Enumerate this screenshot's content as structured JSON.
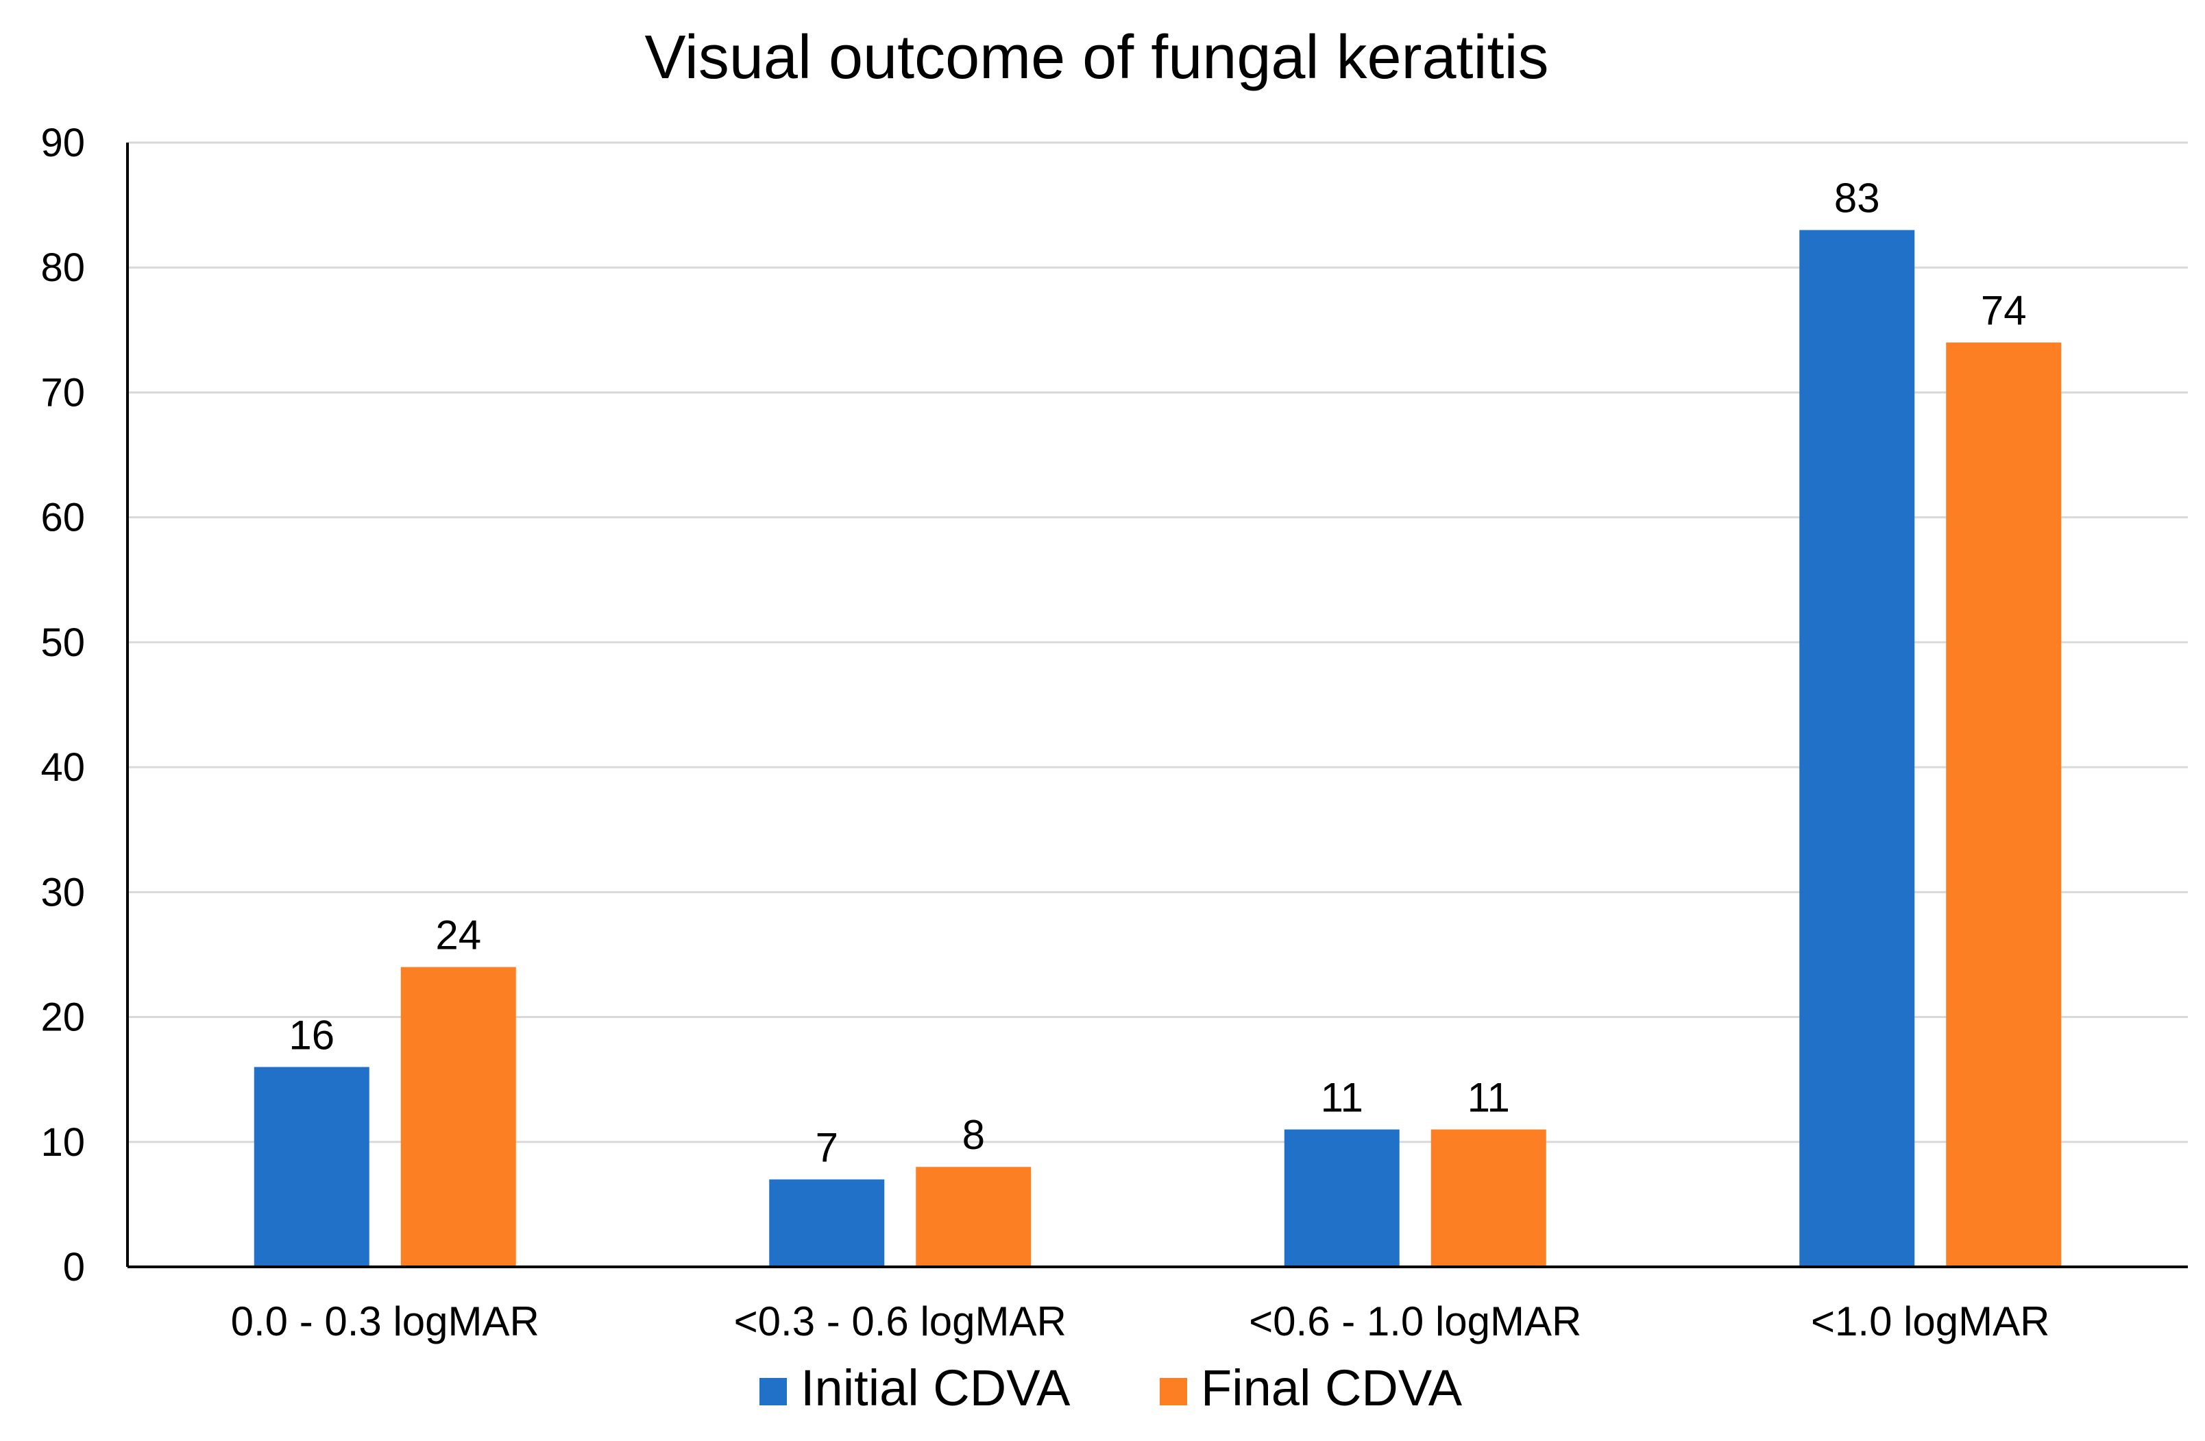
{
  "chart_data": {
    "type": "bar",
    "title": "Visual outcome of fungal keratitis",
    "xlabel": "",
    "ylabel": "",
    "ylim": [
      0,
      90
    ],
    "yticks": [
      0,
      10,
      20,
      30,
      40,
      50,
      60,
      70,
      80,
      90
    ],
    "grid": true,
    "legend_position": "bottom-center",
    "categories": [
      "0.0 - 0.3 logMAR",
      "<0.3 - 0.6 logMAR",
      "<0.6 - 1.0 logMAR",
      "<1.0 logMAR"
    ],
    "series": [
      {
        "name": "Initial CDVA",
        "color": "#2171c9",
        "values": [
          16,
          7,
          11,
          83
        ]
      },
      {
        "name": "Final CDVA",
        "color": "#fd7f23",
        "values": [
          24,
          8,
          11,
          74
        ]
      }
    ],
    "axis_color": "#000000",
    "gridline_color": "#d9d9d9"
  }
}
